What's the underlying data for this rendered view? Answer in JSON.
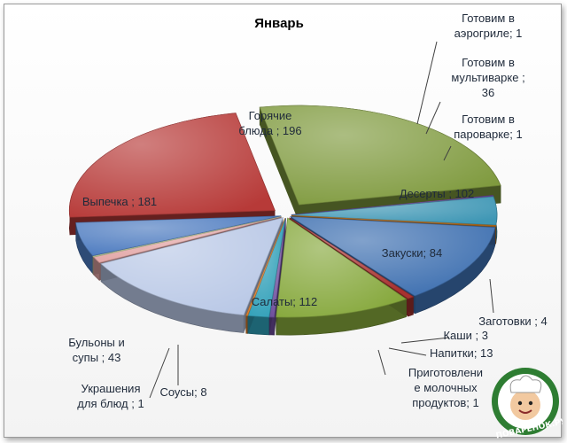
{
  "chart_data": {
    "type": "pie",
    "title": "Январь",
    "label_separator": " ; ",
    "slices": [
      {
        "label": "Горячие блюда",
        "value": 196,
        "color": "#7f9a3e",
        "display": [
          "Горячие",
          "блюда ; 196"
        ]
      },
      {
        "label": "Готовим в аэрогриле",
        "value": 1,
        "color": "#6b3fa0",
        "display": [
          "Готовим в",
          "аэрогриле; 1"
        ]
      },
      {
        "label": "Готовим в мультиварке",
        "value": 36,
        "color": "#3f97b5",
        "display": [
          "Готовим в",
          "мультиварке ;",
          "36"
        ]
      },
      {
        "label": "Готовим в пароварке",
        "value": 1,
        "color": "#c7781f",
        "display": [
          "Готовим в",
          "пароварке; 1"
        ]
      },
      {
        "label": "Десерты",
        "value": 102,
        "color": "#3d6fb0",
        "display": [
          "Десерты ; 102"
        ]
      },
      {
        "label": "Заготовки",
        "value": 4,
        "color": "#a83230",
        "display": [
          "Заготовки ; 4"
        ]
      },
      {
        "label": "Закуски",
        "value": 84,
        "color": "#86a83c",
        "display": [
          "Закуски; 84"
        ]
      },
      {
        "label": "Каши",
        "value": 3,
        "color": "#6a4a9a",
        "display": [
          "Каши ; 3"
        ]
      },
      {
        "label": "Напитки",
        "value": 13,
        "color": "#2f9fb8",
        "display": [
          "Напитки; 13"
        ]
      },
      {
        "label": "Приготовление молочных продуктов",
        "value": 1,
        "color": "#e0802a",
        "display": [
          "Приготовлени",
          "е молочных",
          "продуктов; 1"
        ]
      },
      {
        "label": "Салаты",
        "value": 112,
        "color": "#b9c8e6",
        "display": [
          "Салаты; 112"
        ]
      },
      {
        "label": "Соусы",
        "value": 8,
        "color": "#e3a6a6",
        "display": [
          "Соусы; 8"
        ]
      },
      {
        "label": "Украшения для блюд",
        "value": 1,
        "color": "#c9d7a0",
        "display": [
          "Украшения",
          "для блюд ; 1"
        ]
      },
      {
        "label": "Бульоны и супы",
        "value": 43,
        "color": "#4a79bf",
        "display": [
          "Бульоны и",
          "супы ; 43"
        ]
      },
      {
        "label": "Выпечка",
        "value": 181,
        "color": "#b73a38",
        "display": [
          "Выпечка ; 181"
        ]
      }
    ],
    "legend": "none",
    "style": "3d-exploded"
  },
  "watermark": {
    "text": "ПОВАРЁНОК.РУ",
    "icon": "chef-logo-icon"
  }
}
